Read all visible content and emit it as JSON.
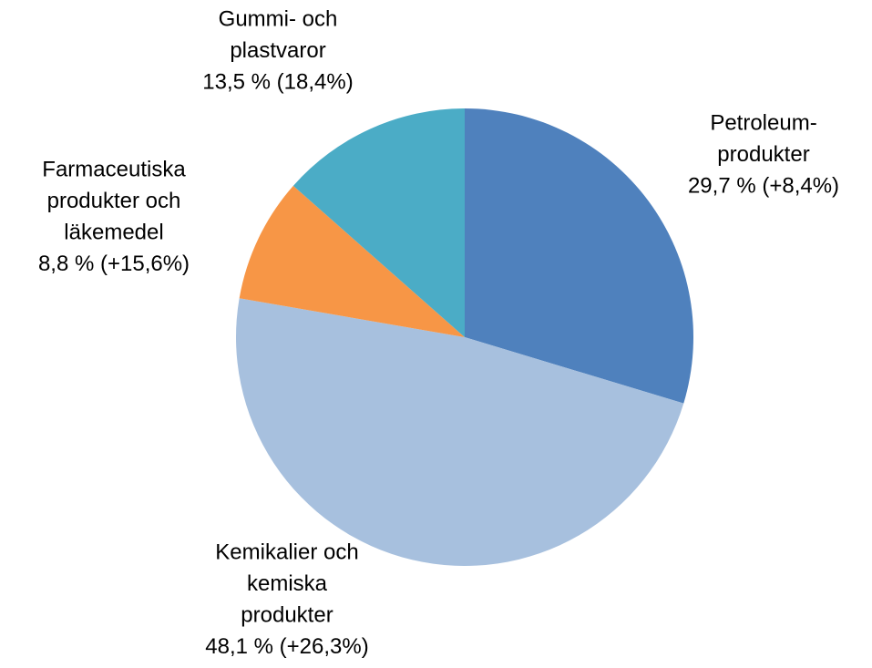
{
  "chart_data": {
    "type": "pie",
    "categories": [
      [
        "Petroleum-",
        "produkter"
      ],
      [
        "Kemikalier och",
        "kemiska",
        "produkter"
      ],
      [
        "Farmaceutiska",
        "produkter och",
        "läkemedel"
      ],
      [
        "Gummi- och",
        "plastvaror"
      ]
    ],
    "values": [
      29.7,
      48.1,
      8.8,
      13.5
    ],
    "value_labels": [
      "29,7 % (+8,4%)",
      "48,1 % (+26,3%)",
      "8,8 % (+15,6%)",
      "13,5 % (18,4%)"
    ],
    "colors": [
      "#4f81bd",
      "#a7c0de",
      "#f79646",
      "#4bacc6"
    ]
  }
}
